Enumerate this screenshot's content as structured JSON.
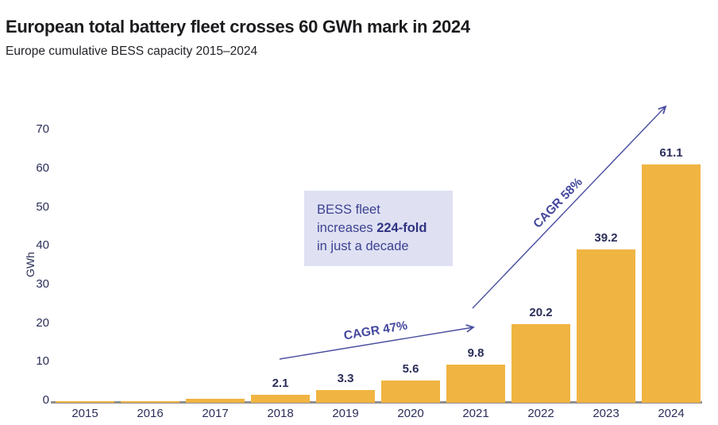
{
  "header": {
    "title": "European total battery fleet crosses 60 GWh mark in 2024",
    "subtitle": "Europe cumulative BESS capacity 2015–2024"
  },
  "chart_data": {
    "type": "bar",
    "title": "European total battery fleet crosses 60 GWh mark in 2024",
    "subtitle": "Europe cumulative BESS capacity 2015–2024",
    "categories": [
      "2015",
      "2016",
      "2017",
      "2018",
      "2019",
      "2020",
      "2021",
      "2022",
      "2023",
      "2024"
    ],
    "values": [
      0.3,
      0.5,
      1.0,
      2.1,
      3.3,
      5.6,
      9.8,
      20.2,
      39.2,
      61.1
    ],
    "bar_value_labels": [
      "",
      "",
      "",
      "2.1",
      "3.3",
      "5.6",
      "9.8",
      "20.2",
      "39.2",
      "61.1"
    ],
    "xlabel": "",
    "ylabel": "GWh",
    "yticks": [
      0,
      10,
      20,
      30,
      40,
      50,
      60,
      70
    ],
    "ylim": [
      0,
      70
    ],
    "grid": false,
    "legend": "none",
    "bar_color": "#F0B442",
    "annotations": {
      "callout": {
        "line1": "BESS fleet",
        "line2_prefix": "increases ",
        "line2_bold": "224-fold",
        "line3": "in just a decade"
      },
      "arrows": [
        {
          "label": "CAGR 47%"
        },
        {
          "label": "CAGR 58%"
        }
      ]
    }
  },
  "colors": {
    "bar": "#F0B442",
    "arrow_indigo": "#4a4ea0",
    "cagr_text": "#44479e",
    "axis_text_navy": "#2b2e59",
    "callout_bg": "#dfe1f3",
    "callout_text": "#3d4191",
    "axis_line_gray": "#8f8f8f",
    "title_text": "#1c1c1f"
  }
}
